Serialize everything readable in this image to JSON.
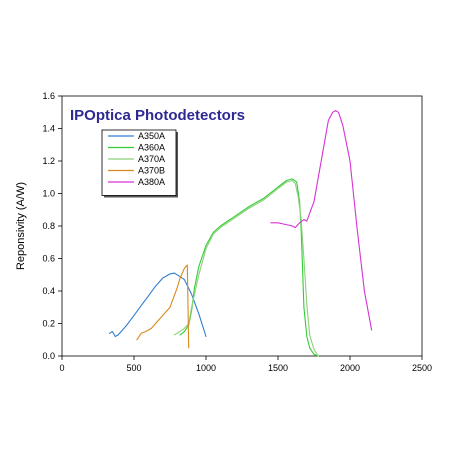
{
  "chart_data": {
    "type": "line",
    "title": "IPOptica Photodetectors",
    "title_color": "#2E2A93",
    "xlabel": "",
    "ylabel": "Reponsivity (A/W)",
    "xlim": [
      0,
      2500
    ],
    "ylim": [
      0,
      1.6
    ],
    "x_ticks": [
      0,
      500,
      1000,
      1500,
      2000,
      2500
    ],
    "y_ticks": [
      0.0,
      0.2,
      0.4,
      0.6,
      0.8,
      1.0,
      1.2,
      1.4,
      1.6
    ],
    "x_tick_labels": [
      "0",
      "500",
      "1000",
      "1500",
      "2000",
      "2500"
    ],
    "y_tick_labels": [
      "0.0",
      "0.2",
      "0.4",
      "0.6",
      "0.8",
      "1.0",
      "1.2",
      "1.4",
      "1.6"
    ],
    "grid": false,
    "legend_position": "top-left",
    "series": [
      {
        "name": "A350A",
        "color": "#2F7FD0",
        "x": [
          330,
          350,
          370,
          390,
          420,
          450,
          500,
          550,
          600,
          650,
          700,
          750,
          780,
          800,
          850,
          900,
          950,
          1000
        ],
        "y": [
          0.14,
          0.15,
          0.12,
          0.13,
          0.16,
          0.19,
          0.25,
          0.31,
          0.37,
          0.43,
          0.48,
          0.505,
          0.51,
          0.5,
          0.47,
          0.38,
          0.26,
          0.12
        ]
      },
      {
        "name": "A360A",
        "color": "#33CC33",
        "x": [
          820,
          850,
          880,
          900,
          920,
          950,
          1000,
          1050,
          1100,
          1200,
          1300,
          1400,
          1500,
          1560,
          1600,
          1630,
          1650,
          1660,
          1670,
          1680,
          1700,
          1720,
          1750,
          1780
        ],
        "y": [
          0.13,
          0.15,
          0.19,
          0.28,
          0.42,
          0.55,
          0.68,
          0.76,
          0.8,
          0.86,
          0.92,
          0.97,
          1.04,
          1.08,
          1.09,
          1.07,
          0.95,
          0.8,
          0.55,
          0.3,
          0.12,
          0.05,
          0.01,
          0.0
        ]
      },
      {
        "name": "A370A",
        "color": "#8ECF7A",
        "x": [
          780,
          800,
          850,
          880,
          900,
          950,
          1000,
          1050,
          1100,
          1200,
          1300,
          1400,
          1500,
          1560,
          1600,
          1620,
          1640,
          1660,
          1680,
          1700,
          1720,
          1750,
          1780
        ],
        "y": [
          0.13,
          0.14,
          0.17,
          0.2,
          0.3,
          0.5,
          0.66,
          0.75,
          0.79,
          0.85,
          0.91,
          0.96,
          1.03,
          1.07,
          1.08,
          1.06,
          0.98,
          0.85,
          0.6,
          0.32,
          0.13,
          0.04,
          0.0
        ]
      },
      {
        "name": "A370B",
        "color": "#D98A1E",
        "x": [
          520,
          550,
          580,
          620,
          650,
          700,
          750,
          800,
          820,
          850,
          870,
          880
        ],
        "y": [
          0.1,
          0.14,
          0.15,
          0.17,
          0.2,
          0.25,
          0.3,
          0.42,
          0.48,
          0.54,
          0.56,
          0.05
        ]
      },
      {
        "name": "A380A",
        "color": "#D633D6",
        "x": [
          1450,
          1500,
          1550,
          1600,
          1620,
          1650,
          1680,
          1700,
          1750,
          1800,
          1850,
          1880,
          1900,
          1920,
          1950,
          2000,
          2050,
          2100,
          2150
        ],
        "y": [
          0.82,
          0.82,
          0.81,
          0.8,
          0.79,
          0.82,
          0.84,
          0.83,
          0.95,
          1.2,
          1.45,
          1.5,
          1.51,
          1.5,
          1.42,
          1.2,
          0.78,
          0.4,
          0.16
        ]
      }
    ]
  }
}
